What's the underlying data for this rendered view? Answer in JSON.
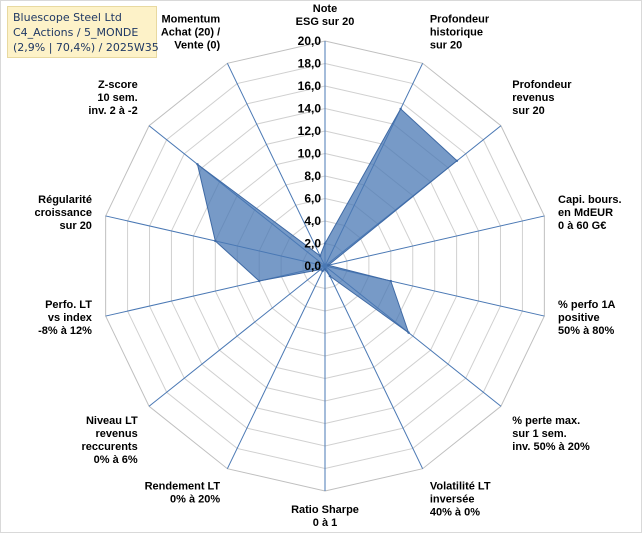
{
  "info": {
    "line1": "Bluescope Steel Ltd",
    "line2": "C4_Actions / 5_MONDE",
    "line3": "(2,9% | 70,4%) / 2025W35"
  },
  "chart_data": {
    "type": "radar",
    "rmin": 0,
    "rmax": 20,
    "ticks": [
      "0,0",
      "2,0",
      "4,0",
      "6,0",
      "8,0",
      "10,0",
      "12,0",
      "14,0",
      "16,0",
      "18,0",
      "20,0"
    ],
    "series_color": "#4a78b4",
    "axes": [
      {
        "label": [
          "Note",
          "ESG sur 20"
        ],
        "value": 2.0
      },
      {
        "label": [
          "Profondeur",
          "historique",
          "sur 20"
        ],
        "value": 15.5
      },
      {
        "label": [
          "Profondeur",
          "revenus",
          "sur 20"
        ],
        "value": 15.0
      },
      {
        "label": [
          "Capi. bours.",
          "en MdEUR",
          "0 à 60 G€"
        ],
        "value": 0.3
      },
      {
        "label": [
          "% perfo 1A",
          "positive",
          "50% à 80%"
        ],
        "value": 6.0
      },
      {
        "label": [
          "% perte max.",
          "sur 1 sem.",
          "inv. 50% à 20%"
        ],
        "value": 9.5
      },
      {
        "label": [
          "Volatilité LT",
          "inversée",
          "40% à 0%"
        ],
        "value": 1.0
      },
      {
        "label": [
          "Ratio Sharpe",
          "0 à 1"
        ],
        "value": 0.3
      },
      {
        "label": [
          "Rendement LT",
          "0% à 20%"
        ],
        "value": 0.5
      },
      {
        "label": [
          "Niveau LT",
          "revenus",
          "reccurents",
          "0% à 6%"
        ],
        "value": 0.5
      },
      {
        "label": [
          "Perfo. LT",
          "vs index",
          "-8% à 12%"
        ],
        "value": 6.0
      },
      {
        "label": [
          "Régularité",
          "croissance",
          "sur 20"
        ],
        "value": 10.0
      },
      {
        "label": [
          "Z-score",
          "10 sem.",
          "inv. 2 à -2"
        ],
        "value": 14.5
      },
      {
        "label": [
          "Momentum",
          "Achat (20) /",
          "Vente (0)"
        ],
        "value": 1.0
      }
    ]
  }
}
